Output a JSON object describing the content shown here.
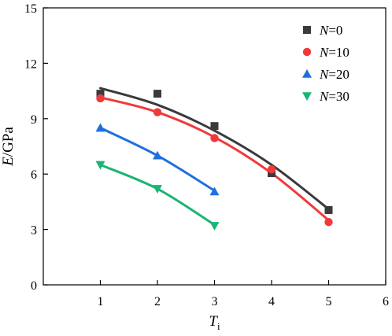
{
  "chart_data": {
    "type": "scatter",
    "xlabel": {
      "main": "T",
      "sub": "i"
    },
    "ylabel": {
      "main": "E",
      "rest": "/GPa"
    },
    "xlim": [
      0,
      6
    ],
    "ylim": [
      0,
      15
    ],
    "xticks": [
      1,
      2,
      3,
      4,
      5,
      6
    ],
    "yticks": [
      0,
      3,
      6,
      9,
      12,
      15
    ],
    "legend_position": "top-right",
    "series": [
      {
        "name": "N=0",
        "name_var": "N",
        "name_val": "=0",
        "marker": "square",
        "color": "#3a3a3a",
        "x": [
          1,
          2,
          3,
          4,
          5
        ],
        "y": [
          10.35,
          10.35,
          8.6,
          6.05,
          4.05
        ],
        "fit": [
          10.65,
          9.75,
          8.35,
          6.5,
          4.1
        ]
      },
      {
        "name": "N=10",
        "name_var": "N",
        "name_val": "=10",
        "marker": "circle",
        "color": "#ef3a3a",
        "x": [
          1,
          2,
          3,
          4,
          5
        ],
        "y": [
          10.1,
          9.35,
          7.95,
          6.25,
          3.4
        ],
        "fit": [
          10.15,
          9.35,
          8.0,
          6.05,
          3.5
        ]
      },
      {
        "name": "N=20",
        "name_var": "N",
        "name_val": "=20",
        "marker": "triangle-up",
        "color": "#1f6fe0",
        "x": [
          1,
          2,
          3
        ],
        "y": [
          8.5,
          7.0,
          5.05
        ],
        "fit": [
          8.5,
          7.0,
          5.1
        ]
      },
      {
        "name": "N=30",
        "name_var": "N",
        "name_val": "=30",
        "marker": "triangle-down",
        "color": "#19b574",
        "x": [
          1,
          2,
          3
        ],
        "y": [
          6.5,
          5.2,
          3.2
        ],
        "fit": [
          6.5,
          5.2,
          3.25
        ]
      }
    ]
  }
}
